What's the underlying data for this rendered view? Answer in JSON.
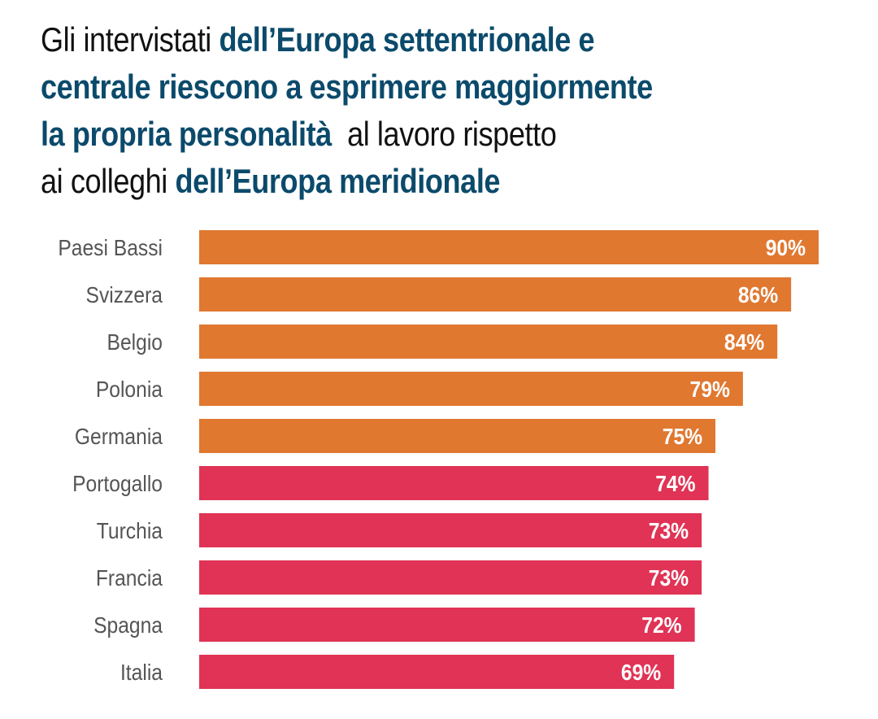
{
  "title": {
    "line1_normal": "Gli intervistati ",
    "line1_bold": "dell’Europa settentrionale e",
    "line2_bold": "centrale riescono a esprimere maggiormente",
    "line3_bold": "la propria personalità",
    "line3_normal": "  al lavoro rispetto",
    "line4_normal": "ai colleghi ",
    "line4_bold": "dell’Europa meridionale"
  },
  "colors": {
    "title_highlight": "#0b4a6b",
    "north_central": "#e07830",
    "south": "#e03355",
    "label": "#555555"
  },
  "chart_data": {
    "type": "bar",
    "orientation": "horizontal",
    "title": "Gli intervistati dell’Europa settentrionale e centrale riescono a esprimere maggiormente la propria personalità al lavoro rispetto ai colleghi dell’Europa meridionale",
    "xlabel": "",
    "ylabel": "",
    "xlim": [
      0,
      90
    ],
    "grid": false,
    "categories": [
      "Paesi Bassi",
      "Svizzera",
      "Belgio",
      "Polonia",
      "Germania",
      "Portogallo",
      "Turchia",
      "Francia",
      "Spagna",
      "Italia"
    ],
    "values": [
      90,
      86,
      84,
      79,
      75,
      74,
      73,
      73,
      72,
      69
    ],
    "value_labels": [
      "90%",
      "86%",
      "84%",
      "79%",
      "75%",
      "74%",
      "73%",
      "73%",
      "72%",
      "69%"
    ],
    "groups": [
      "north_central",
      "north_central",
      "north_central",
      "north_central",
      "north_central",
      "south",
      "south",
      "south",
      "south",
      "south"
    ],
    "unit": "%"
  }
}
